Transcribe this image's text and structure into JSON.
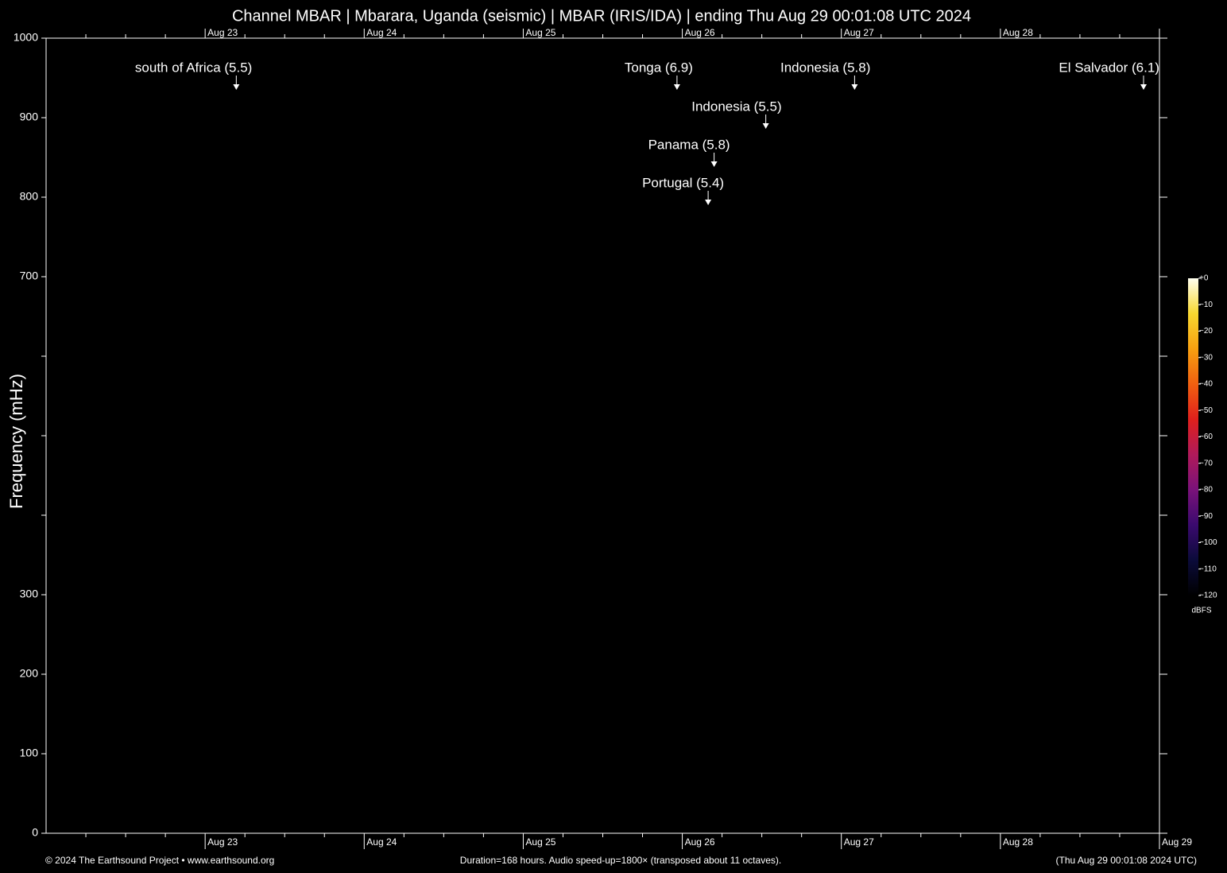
{
  "chart_data": {
    "type": "spectrogram",
    "title": "Channel MBAR | Mbarara, Uganda (seismic) | MBAR (IRIS/IDA) | ending Thu Aug 29 00:01:08 UTC 2024",
    "y_label": "Frequency (mHz)",
    "ylim": [
      0,
      1000
    ],
    "yticks": [
      0,
      100,
      200,
      300,
      700,
      800,
      900,
      1000
    ],
    "yminor_ticks": [
      400,
      500,
      600
    ],
    "xlim": [
      0,
      168
    ],
    "xticks": [
      {
        "value": 24,
        "label": "Aug 23"
      },
      {
        "value": 48,
        "label": "Aug 24"
      },
      {
        "value": 72,
        "label": "Aug 25"
      },
      {
        "value": 96,
        "label": "Aug 26"
      },
      {
        "value": 120,
        "label": "Aug 27"
      },
      {
        "value": 144,
        "label": "Aug 28"
      },
      {
        "value": 168,
        "label": "Aug 29"
      }
    ],
    "xminor_ticks": [
      6,
      12,
      18,
      30,
      36,
      42,
      54,
      60,
      66,
      78,
      84,
      90,
      102,
      108,
      114,
      126,
      132,
      138,
      150,
      156,
      162
    ],
    "events": [
      {
        "label": "south of Africa (5.5)",
        "x": 28.7,
        "y": 935
      },
      {
        "label": "Tonga (6.9)",
        "x": 95.2,
        "y": 935
      },
      {
        "label": "Indonesia (5.8)",
        "x": 122.0,
        "y": 935
      },
      {
        "label": "El Salvador (6.1)",
        "x": 165.6,
        "y": 935
      },
      {
        "label": "Indonesia (5.5)",
        "x": 108.6,
        "y": 886
      },
      {
        "label": "Panama (5.8)",
        "x": 100.8,
        "y": 838
      },
      {
        "label": "Portugal (5.4)",
        "x": 99.9,
        "y": 790
      }
    ],
    "colorbar": {
      "label": "dBFS",
      "lim": [
        -120,
        0
      ],
      "colors": [
        "#000000",
        "#0b0b3a",
        "#3a0a6e",
        "#7a127a",
        "#b01a5a",
        "#e0201c",
        "#f06010",
        "#f8a010",
        "#f8d830",
        "#fffff0"
      ],
      "ticks": [
        {
          "value": 0,
          "label": "+0"
        },
        {
          "value": -10,
          "label": "−10"
        },
        {
          "value": -20,
          "label": "−20"
        },
        {
          "value": -30,
          "label": "−30"
        },
        {
          "value": -40,
          "label": "−40"
        },
        {
          "value": -50,
          "label": "−50"
        },
        {
          "value": -60,
          "label": "−60"
        },
        {
          "value": -70,
          "label": "−70"
        },
        {
          "value": -80,
          "label": "−80"
        },
        {
          "value": -90,
          "label": "−90"
        },
        {
          "value": -100,
          "label": "−100"
        },
        {
          "value": -110,
          "label": "−110"
        },
        {
          "value": -120,
          "label": "−120"
        }
      ]
    },
    "footer_left": "© 2024 The Earthsound Project • www.earthsound.org",
    "footer_center": "Duration=168 hours. Audio speed-up=1800× (transposed about 11 octaves).",
    "footer_right": "(Thu Aug 29 00:01:08 2024 UTC)"
  }
}
